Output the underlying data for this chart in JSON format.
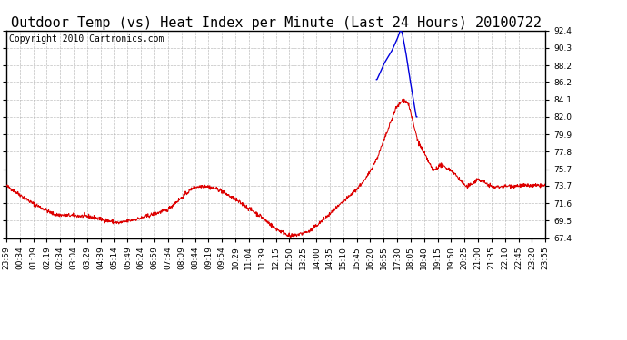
{
  "title": "Outdoor Temp (vs) Heat Index per Minute (Last 24 Hours) 20100722",
  "copyright": "Copyright 2010 Cartronics.com",
  "ylim": [
    67.4,
    92.4
  ],
  "yticks": [
    67.4,
    69.5,
    71.6,
    73.7,
    75.7,
    77.8,
    79.9,
    82.0,
    84.1,
    86.2,
    88.2,
    90.3,
    92.4
  ],
  "background_color": "#ffffff",
  "plot_bg_color": "#ffffff",
  "grid_color": "#b0b0b0",
  "red_color": "#dd0000",
  "blue_color": "#0000dd",
  "title_fontsize": 11,
  "copyright_fontsize": 7,
  "tick_fontsize": 6.5,
  "xtick_labels": [
    "23:59",
    "00:34",
    "01:09",
    "02:19",
    "02:34",
    "03:04",
    "03:29",
    "04:39",
    "05:14",
    "05:49",
    "06:24",
    "06:59",
    "07:34",
    "08:09",
    "08:44",
    "09:19",
    "09:54",
    "10:29",
    "11:04",
    "11:39",
    "12:15",
    "12:50",
    "13:25",
    "14:00",
    "14:35",
    "15:10",
    "15:45",
    "16:20",
    "16:55",
    "17:30",
    "18:05",
    "18:40",
    "19:15",
    "19:50",
    "20:25",
    "21:00",
    "21:35",
    "22:10",
    "22:45",
    "23:20",
    "23:55"
  ],
  "num_points": 1440
}
